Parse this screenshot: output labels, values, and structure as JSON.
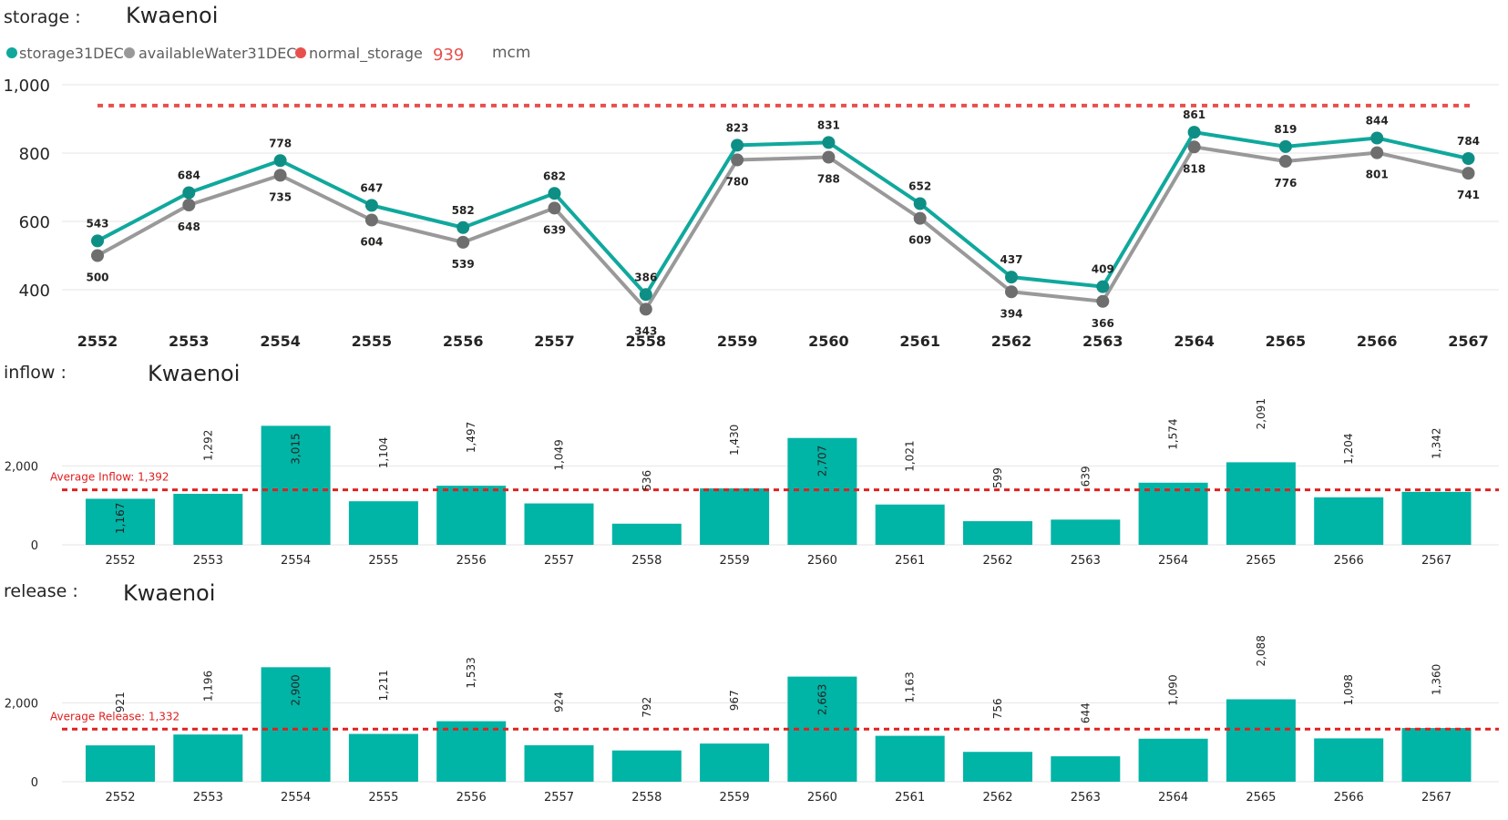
{
  "colors": {
    "storage": "#10A89D",
    "storage_marker": "#0E8F86",
    "available": "#999999",
    "available_marker": "#6E6E6E",
    "normal": "#E8504D",
    "bar": "#00B4A6",
    "avg_line": "#E02020",
    "grid": "#E6E6E6"
  },
  "storage_panel": {
    "label": "storage :",
    "name": "Kwaenoi"
  },
  "inflow_panel": {
    "label": "inflow :",
    "name": "Kwaenoi"
  },
  "release_panel": {
    "label": "release :",
    "name": "Kwaenoi"
  },
  "legend": {
    "items": [
      {
        "label": "storage31DEC",
        "color": "#10A89D"
      },
      {
        "label": "availableWater31DEC",
        "color": "#999999"
      },
      {
        "label": "normal_storage",
        "color": "#E8504D"
      }
    ],
    "normal_value": "939",
    "unit": "mcm"
  },
  "chart_data": [
    {
      "type": "line",
      "categories": [
        "2552",
        "2553",
        "2554",
        "2555",
        "2556",
        "2557",
        "2558",
        "2559",
        "2560",
        "2561",
        "2562",
        "2563",
        "2564",
        "2565",
        "2566",
        "2567"
      ],
      "series": [
        {
          "name": "storage31DEC",
          "values": [
            543,
            684,
            778,
            647,
            582,
            682,
            386,
            823,
            831,
            652,
            437,
            409,
            861,
            819,
            844,
            784
          ]
        },
        {
          "name": "availableWater31DEC",
          "values": [
            500,
            648,
            735,
            604,
            539,
            639,
            343,
            780,
            788,
            609,
            394,
            366,
            818,
            776,
            801,
            741
          ]
        },
        {
          "name": "normal_storage",
          "values": [
            939,
            939,
            939,
            939,
            939,
            939,
            939,
            939,
            939,
            939,
            939,
            939,
            939,
            939,
            939,
            939
          ]
        }
      ],
      "yticks": [
        "400",
        "600",
        "800",
        "1,000"
      ],
      "ylim": [
        320,
        1020
      ]
    },
    {
      "type": "bar",
      "categories": [
        "2552",
        "2553",
        "2554",
        "2555",
        "2556",
        "2557",
        "2558",
        "2559",
        "2560",
        "2561",
        "2562",
        "2563",
        "2564",
        "2565",
        "2566",
        "2567"
      ],
      "values": [
        1167,
        1292,
        3015,
        1104,
        1497,
        1049,
        536,
        1430,
        2707,
        1021,
        599,
        639,
        1574,
        2091,
        1204,
        1342
      ],
      "labels": [
        "1,167",
        "1,292",
        "3,015",
        "1,104",
        "1,497",
        "1,049",
        "536",
        "1,430",
        "2,707",
        "1,021",
        "599",
        "639",
        "1,574",
        "2,091",
        "1,204",
        "1,342"
      ],
      "average": {
        "label": "Average Inflow: 1,392",
        "value": 1392
      },
      "yticks": [
        "0",
        "2,000"
      ],
      "ylim": [
        0,
        3200
      ]
    },
    {
      "type": "bar",
      "categories": [
        "2552",
        "2553",
        "2554",
        "2555",
        "2556",
        "2557",
        "2558",
        "2559",
        "2560",
        "2561",
        "2562",
        "2563",
        "2564",
        "2565",
        "2566",
        "2567"
      ],
      "values": [
        921,
        1196,
        2900,
        1211,
        1533,
        924,
        792,
        967,
        2663,
        1163,
        756,
        644,
        1090,
        2088,
        1098,
        1360
      ],
      "labels": [
        "921",
        "1,196",
        "2,900",
        "1,211",
        "1,533",
        "924",
        "792",
        "967",
        "2,663",
        "1,163",
        "756",
        "644",
        "1,090",
        "2,088",
        "1,098",
        "1,360"
      ],
      "average": {
        "label": "Average Release: 1,332",
        "value": 1332
      },
      "yticks": [
        "0",
        "2,000"
      ],
      "ylim": [
        0,
        3200
      ]
    }
  ]
}
